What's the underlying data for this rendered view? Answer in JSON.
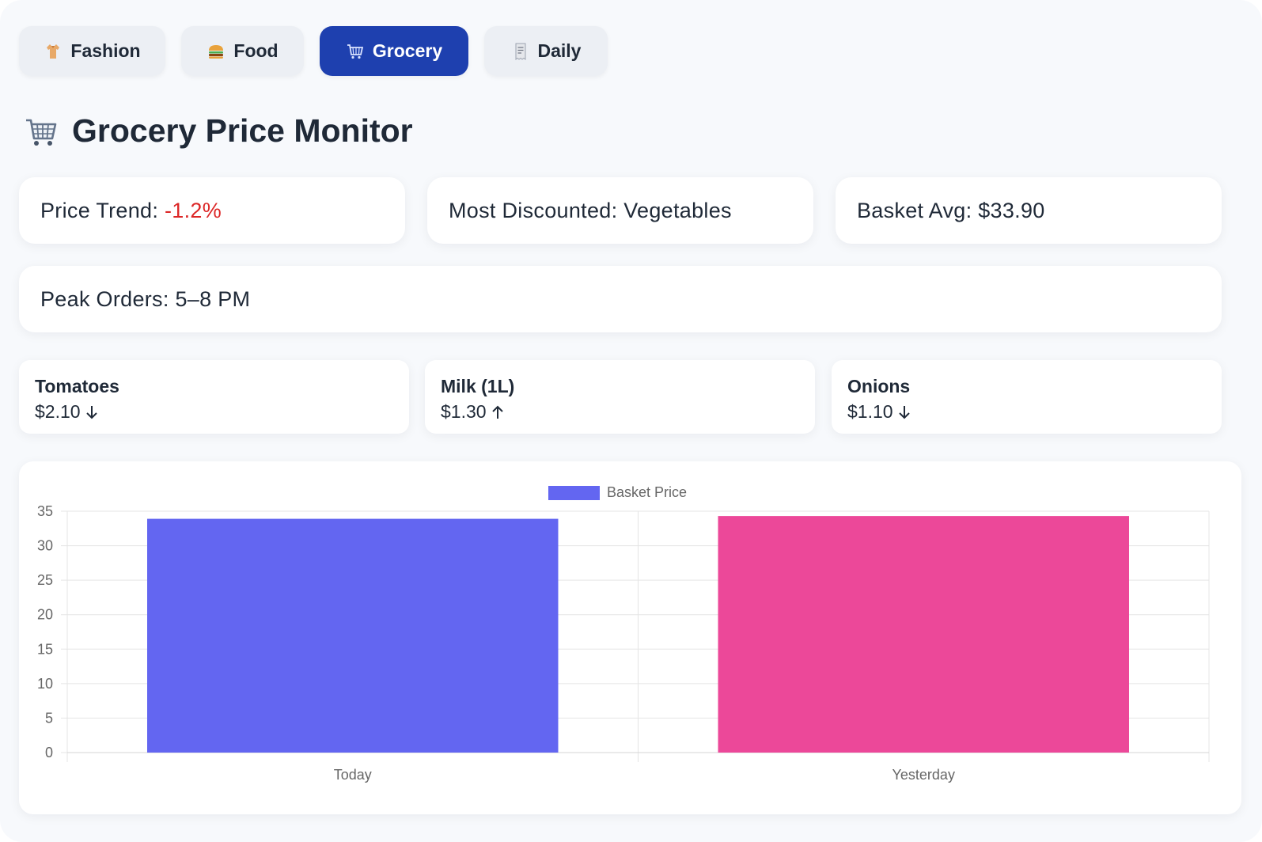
{
  "tabs": [
    {
      "label": "Fashion",
      "icon": "fashion-icon",
      "active": false
    },
    {
      "label": "Food",
      "icon": "burger-icon",
      "active": false
    },
    {
      "label": "Grocery",
      "icon": "cart-icon",
      "active": true
    },
    {
      "label": "Daily",
      "icon": "receipt-icon",
      "active": false
    }
  ],
  "title": "Grocery Price Monitor",
  "stats": {
    "trend_label": "Price Trend:",
    "trend_value": "-1.2%",
    "discounted": "Most Discounted: Vegetables",
    "basket_avg": "Basket Avg: $33.90",
    "peak_orders": "Peak Orders: 5–8 PM"
  },
  "items": [
    {
      "name": "Tomatoes",
      "price": "$2.10",
      "direction": "down"
    },
    {
      "name": "Milk (1L)",
      "price": "$1.30",
      "direction": "up"
    },
    {
      "name": "Onions",
      "price": "$1.10",
      "direction": "down"
    }
  ],
  "colors": {
    "accent": "#1e40af",
    "negative": "#dc2626",
    "bar_today": "#6366f1",
    "bar_yesterday": "#ec4899"
  },
  "chart_data": {
    "type": "bar",
    "categories": [
      "Today",
      "Yesterday"
    ],
    "series": [
      {
        "name": "Basket Price",
        "values": [
          33.9,
          34.3
        ]
      }
    ],
    "bar_colors": [
      "#6366f1",
      "#ec4899"
    ],
    "ylim": [
      0,
      35
    ],
    "yticks": [
      0,
      5,
      10,
      15,
      20,
      25,
      30,
      35
    ],
    "grid": true,
    "legend": "top-center"
  }
}
